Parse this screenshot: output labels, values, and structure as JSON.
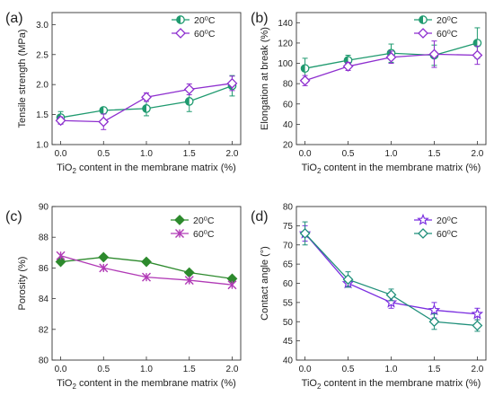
{
  "chart_data": [
    {
      "type": "line",
      "panel_label": "(a)",
      "xlabel_parts": [
        "TiO",
        "2",
        " content in the membrane matrix (%)"
      ],
      "ylabel": "Tensile strength (MPa)",
      "x": [
        0.0,
        0.5,
        1.0,
        1.5,
        2.0
      ],
      "x_ticks": [
        "0.0",
        "0.5",
        "1.0",
        "1.5",
        "2.0"
      ],
      "xlim": [
        -0.1,
        2.1
      ],
      "ylim": [
        1.0,
        3.2
      ],
      "y_ticks": [
        "1.0",
        "1.5",
        "2.0",
        "2.5",
        "3.0"
      ],
      "legend": "top-right",
      "series": [
        {
          "name": "20⁰C",
          "color": "#1f9a6f",
          "marker": "half-circle",
          "values": [
            1.45,
            1.57,
            1.6,
            1.72,
            1.98
          ],
          "errors": [
            0.1,
            0.04,
            0.12,
            0.17,
            0.17
          ]
        },
        {
          "name": "60⁰C",
          "color": "#8e2fcf",
          "marker": "diamond",
          "values": [
            1.4,
            1.38,
            1.79,
            1.92,
            2.02
          ],
          "errors": [
            0.06,
            0.13,
            0.07,
            0.09,
            0.12
          ]
        }
      ]
    },
    {
      "type": "line",
      "panel_label": "(b)",
      "xlabel_parts": [
        "TiO",
        "2",
        " content in the membrane matrix (%)"
      ],
      "ylabel": "Elongation at break (%)",
      "x": [
        0.0,
        0.5,
        1.0,
        1.5,
        2.0
      ],
      "x_ticks": [
        "0.0",
        "0.5",
        "1.0",
        "1.5",
        "2.0"
      ],
      "xlim": [
        -0.1,
        2.1
      ],
      "ylim": [
        20,
        150
      ],
      "y_ticks": [
        "20",
        "40",
        "60",
        "80",
        "100",
        "120",
        "140"
      ],
      "legend": "top-right",
      "series": [
        {
          "name": "20⁰C",
          "color": "#1f9a6f",
          "marker": "half-circle",
          "values": [
            95,
            103,
            110,
            108,
            120
          ],
          "errors": [
            10,
            5,
            9,
            10,
            15
          ]
        },
        {
          "name": "60⁰C",
          "color": "#8e2fcf",
          "marker": "diamond",
          "values": [
            83,
            97,
            106,
            109,
            108
          ],
          "errors": [
            5,
            4,
            6,
            13,
            9
          ]
        }
      ]
    },
    {
      "type": "line",
      "panel_label": "(c)",
      "xlabel_parts": [
        "TiO",
        "2",
        " content in the membrane matrix (%)"
      ],
      "ylabel": "Porosity (%)",
      "x": [
        0.0,
        0.5,
        1.0,
        1.5,
        2.0
      ],
      "x_ticks": [
        "0.0",
        "0.5",
        "1.0",
        "1.5",
        "2.0"
      ],
      "xlim": [
        -0.1,
        2.1
      ],
      "ylim": [
        80,
        90
      ],
      "y_ticks": [
        "80",
        "82",
        "84",
        "86",
        "88",
        "90"
      ],
      "legend": "top-right",
      "series": [
        {
          "name": "20⁰C",
          "color": "#2d8a2d",
          "marker": "filled-diamond",
          "values": [
            86.4,
            86.7,
            86.4,
            85.7,
            85.3
          ],
          "errors": [
            0,
            0,
            0,
            0,
            0
          ]
        },
        {
          "name": "60⁰C",
          "color": "#b13ab6",
          "marker": "x-star",
          "values": [
            86.8,
            86.0,
            85.4,
            85.2,
            84.9
          ],
          "errors": [
            0,
            0,
            0,
            0,
            0
          ]
        }
      ]
    },
    {
      "type": "line",
      "panel_label": "(d)",
      "xlabel_parts": [
        "TiO",
        "2",
        " content in the membrane matrix (%)"
      ],
      "ylabel": "Contact angle (°)",
      "x": [
        0.0,
        0.5,
        1.0,
        1.5,
        2.0
      ],
      "x_ticks": [
        "0.0",
        "0.5",
        "1.0",
        "1.5",
        "2.0"
      ],
      "xlim": [
        -0.1,
        2.1
      ],
      "ylim": [
        40,
        80
      ],
      "y_ticks": [
        "40",
        "45",
        "50",
        "55",
        "60",
        "65",
        "70",
        "75",
        "80"
      ],
      "legend": "top-right",
      "series": [
        {
          "name": "20⁰C",
          "color": "#7b2fe0",
          "marker": "star",
          "values": [
            73,
            60,
            55,
            53,
            52
          ],
          "errors": [
            2,
            1,
            1.5,
            2,
            1.5
          ]
        },
        {
          "name": "60⁰C",
          "color": "#1f8f7a",
          "marker": "diamond",
          "values": [
            73,
            61,
            57,
            50,
            49
          ],
          "errors": [
            3,
            2,
            1.5,
            2,
            1.5
          ]
        }
      ]
    }
  ]
}
